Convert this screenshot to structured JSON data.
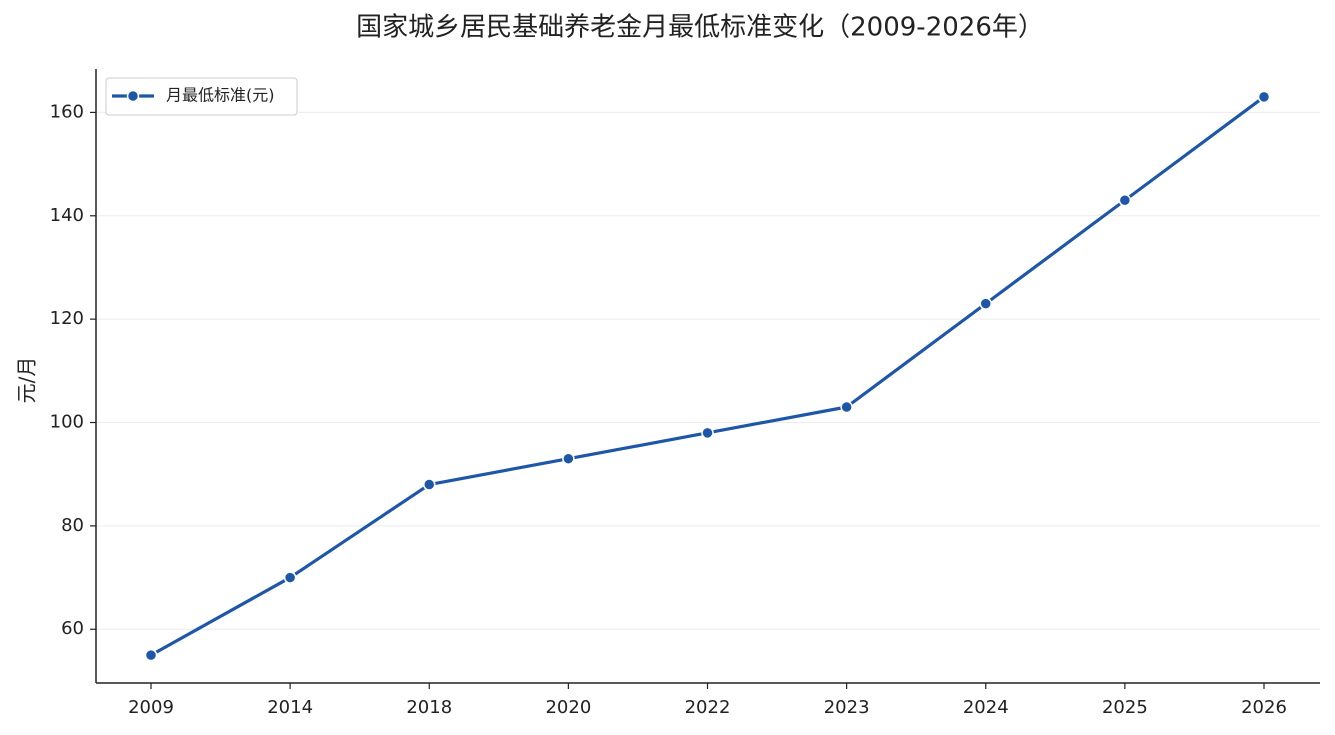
{
  "chart_data": {
    "type": "line",
    "title": "国家城乡居民基础养老金月最低标准变化（2009-2026年）",
    "y_label": "元/月",
    "categories": [
      "2009",
      "2014",
      "2018",
      "2020",
      "2022",
      "2023",
      "2024",
      "2025",
      "2026"
    ],
    "series": [
      {
        "name": "月最低标准(元)",
        "color": "#1f57a8",
        "values": [
          55,
          70,
          88,
          93,
          98,
          103,
          123,
          143,
          163
        ]
      }
    ],
    "ylim": [
      49.6,
      168.4
    ],
    "yticks": [
      60,
      80,
      100,
      120,
      140,
      160
    ],
    "grid": true,
    "legend": "upper-left"
  }
}
